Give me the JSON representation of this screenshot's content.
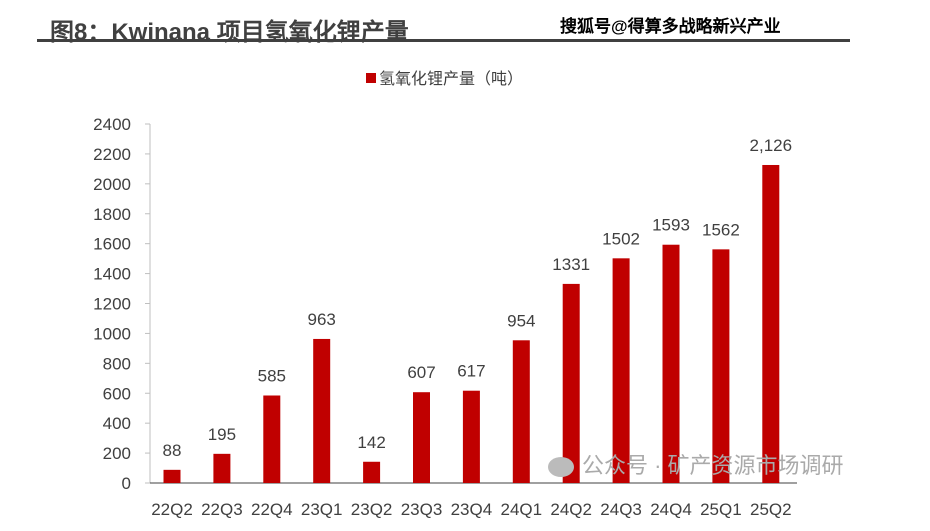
{
  "header": {
    "title": "图8：Kwinana 项目氢氧化锂产量",
    "watermark_top": "搜狐号@得算多战略新兴产业",
    "watermark_bottom": "公众号 · 矿产资源市场调研"
  },
  "chart_data": {
    "type": "bar",
    "title": "图8：Kwinana 项目氢氧化锂产量",
    "legend": [
      "氢氧化锂产量（吨）"
    ],
    "legend_position": "top",
    "color": "#C00000",
    "categories": [
      "22Q2",
      "22Q3",
      "22Q4",
      "23Q1",
      "23Q2",
      "23Q3",
      "23Q4",
      "24Q1",
      "24Q2",
      "24Q3",
      "24Q4",
      "25Q1",
      "25Q2"
    ],
    "values": [
      88,
      195,
      585,
      963,
      142,
      607,
      617,
      954,
      1331,
      1502,
      1593,
      1562,
      2126
    ],
    "data_labels": [
      "88",
      "195",
      "585",
      "963",
      "142",
      "607",
      "617",
      "954",
      "1331",
      "1502",
      "1593",
      "1562",
      "2,126"
    ],
    "yticks": [
      0,
      200,
      400,
      600,
      800,
      1000,
      1200,
      1400,
      1600,
      1800,
      2000,
      2200,
      2400
    ],
    "ylim": [
      0,
      2400
    ],
    "xlabel": "",
    "ylabel": "",
    "grid": false
  }
}
